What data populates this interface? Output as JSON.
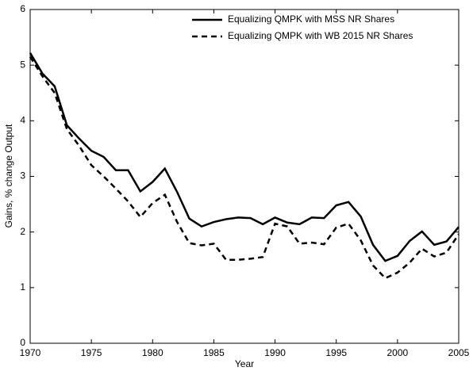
{
  "chart_data": {
    "type": "line",
    "xlabel": "Year",
    "ylabel": "Gains, % change Output",
    "x": [
      1970,
      1971,
      1972,
      1973,
      1974,
      1975,
      1976,
      1977,
      1978,
      1979,
      1980,
      1981,
      1982,
      1983,
      1984,
      1985,
      1986,
      1987,
      1988,
      1989,
      1990,
      1991,
      1992,
      1993,
      1994,
      1995,
      1996,
      1997,
      1998,
      1999,
      2000,
      2001,
      2002,
      2003,
      2004,
      2005
    ],
    "series": [
      {
        "name": "Equalizing QMPK with MSS NR Shares",
        "color": "#000000",
        "line_style": "solid",
        "values": [
          5.22,
          4.85,
          4.62,
          3.92,
          3.68,
          3.46,
          3.35,
          3.11,
          3.11,
          2.73,
          2.9,
          3.14,
          2.72,
          2.24,
          2.1,
          2.18,
          2.23,
          2.26,
          2.25,
          2.14,
          2.26,
          2.17,
          2.14,
          2.26,
          2.25,
          2.48,
          2.54,
          2.28,
          1.77,
          1.48,
          1.57,
          1.84,
          2.01,
          1.77,
          1.83,
          2.09
        ]
      },
      {
        "name": "Equalizing QMPK with WB 2015 NR Shares",
        "color": "#000000",
        "line_style": "dashed",
        "values": [
          5.15,
          4.8,
          4.5,
          3.85,
          3.55,
          3.2,
          3.0,
          2.78,
          2.55,
          2.27,
          2.52,
          2.67,
          2.18,
          1.8,
          1.76,
          1.79,
          1.5,
          1.5,
          1.52,
          1.55,
          2.15,
          2.1,
          1.79,
          1.81,
          1.78,
          2.08,
          2.15,
          1.85,
          1.4,
          1.17,
          1.27,
          1.45,
          1.7,
          1.56,
          1.63,
          1.96
        ]
      }
    ],
    "xlim": [
      1970,
      2005
    ],
    "xticks": [
      1970,
      1975,
      1980,
      1985,
      1990,
      1995,
      2000,
      2005
    ],
    "ylim": [
      0,
      6
    ],
    "yticks": [
      0,
      1,
      2,
      3,
      4,
      5,
      6
    ],
    "legend": "upper right"
  }
}
